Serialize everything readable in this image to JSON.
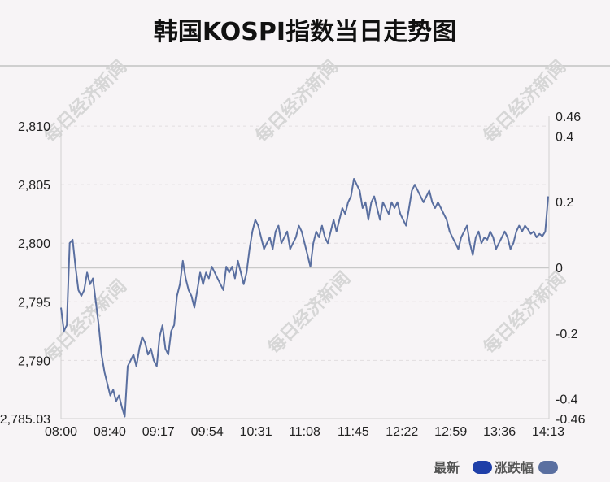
{
  "title": "韩国KOSPI指数当日走势图",
  "watermark": "每日经济新闻",
  "legend": [
    {
      "label": "最新",
      "color": "#1f3fa8"
    },
    {
      "label": "涨跌幅",
      "color": "#5a6fa0"
    }
  ],
  "chart_data": {
    "type": "line",
    "title": "韩国KOSPI指数当日走势图",
    "xlabel": "",
    "ylabel": "",
    "x_ticks": [
      "08:00",
      "08:40",
      "09:17",
      "09:54",
      "10:31",
      "11:08",
      "11:45",
      "12:22",
      "12:59",
      "13:36",
      "14:13"
    ],
    "y_left_ticks": [
      "2,810",
      "2,805",
      "2,800",
      "2,795",
      "2,790",
      "2,785.03"
    ],
    "y_left_tick_values": [
      2810,
      2805,
      2800,
      2795,
      2790,
      2785.03
    ],
    "y_right_ticks": [
      "0.46",
      "0.4",
      "0.2",
      "0",
      "-0.2",
      "-0.4",
      "-0.46"
    ],
    "y_right_tick_values": [
      0.46,
      0.4,
      0.2,
      0,
      -0.2,
      -0.4,
      -0.46
    ],
    "ylim": [
      2785.03,
      2810.84
    ],
    "y_right_lim": [
      -0.46,
      0.46
    ],
    "baseline": 2797.9,
    "grid": true,
    "line_color": "#5a6fa0",
    "series": [
      {
        "values": [
          2794.5,
          2792.5,
          2793,
          2800,
          2800.3,
          2798,
          2796,
          2795.5,
          2796,
          2797.5,
          2796.5,
          2797,
          2795,
          2793,
          2790.5,
          2789,
          2788,
          2787,
          2787.5,
          2786.5,
          2787,
          2786,
          2785.2,
          2789.5,
          2790,
          2790.5,
          2789.5,
          2791,
          2792,
          2791.5,
          2790.5,
          2791,
          2790,
          2789.5,
          2792,
          2793,
          2791,
          2790.5,
          2792.5,
          2793,
          2795.5,
          2796.5,
          2798.5,
          2797,
          2796,
          2795.5,
          2794.5,
          2796,
          2797.5,
          2796.5,
          2797.5,
          2797,
          2798,
          2797.5,
          2797,
          2796.5,
          2796,
          2798,
          2797.5,
          2798,
          2797,
          2798.5,
          2797.5,
          2796.5,
          2797.5,
          2799.5,
          2801,
          2802,
          2801.5,
          2800.5,
          2799.5,
          2800,
          2800.5,
          2799.5,
          2801,
          2801.5,
          2800,
          2800.5,
          2801,
          2799.5,
          2800,
          2800.5,
          2801.5,
          2801,
          2800,
          2799,
          2798,
          2800,
          2801,
          2800.5,
          2801.5,
          2800.5,
          2800,
          2801,
          2802,
          2801,
          2802,
          2803,
          2802.5,
          2803.5,
          2804,
          2805.5,
          2805,
          2804.5,
          2803,
          2803.5,
          2802,
          2803.5,
          2804,
          2803,
          2802,
          2803.5,
          2803,
          2802.5,
          2803.5,
          2803,
          2803.5,
          2802.5,
          2802,
          2801.5,
          2803,
          2804.5,
          2805,
          2804.5,
          2804,
          2803.5,
          2804,
          2804.5,
          2803.5,
          2803,
          2803.5,
          2803,
          2802.5,
          2802,
          2801,
          2800.5,
          2800,
          2799.5,
          2800.5,
          2801,
          2801.5,
          2800,
          2799,
          2800.5,
          2801,
          2800,
          2800.5,
          2800.3,
          2801,
          2800.5,
          2799.5,
          2800,
          2800.5,
          2801,
          2800.5,
          2799.5,
          2800,
          2801,
          2801.5,
          2801,
          2801.5,
          2801.2,
          2800.8,
          2801,
          2800.5,
          2800.8,
          2800.6,
          2801,
          2804
        ]
      }
    ]
  }
}
